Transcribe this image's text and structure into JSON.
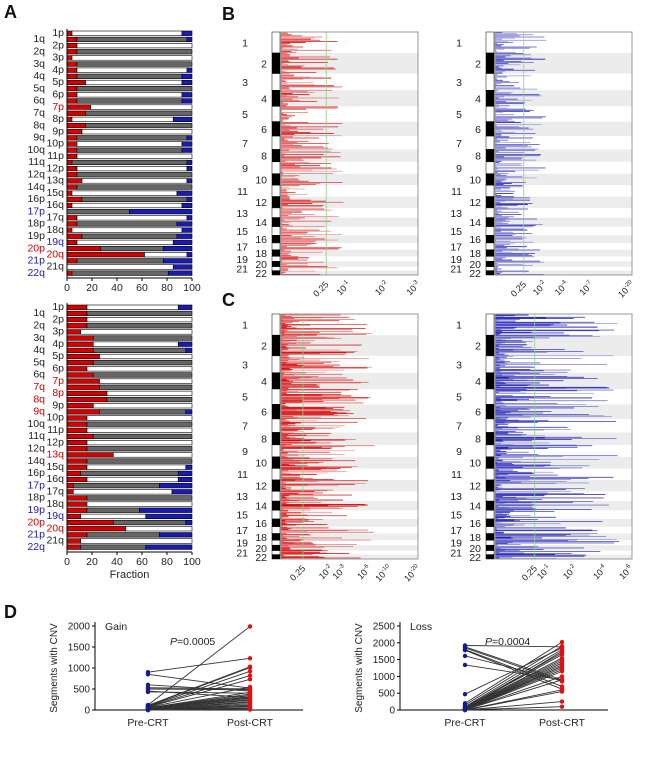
{
  "panels": {
    "A": "A",
    "B": "B",
    "C": "C",
    "D": "D"
  },
  "colors": {
    "gain": "#d40000",
    "loss": "#1a1ab4",
    "neutral_dark": "#666666",
    "neutral_light": "#ffffff",
    "threshold_line": "#8fcf8f"
  },
  "chart_data": [
    {
      "id": "A-top",
      "type": "bar",
      "orientation": "horizontal-stacked",
      "xlim": [
        0,
        100
      ],
      "xticks": [
        "0",
        "20",
        "40",
        "60",
        "80",
        "100"
      ],
      "xlabel": "",
      "categories": [
        "1p",
        "1q",
        "2p",
        "2q",
        "3p",
        "3q",
        "4p",
        "4q",
        "5p",
        "5q",
        "6p",
        "6q",
        "7p",
        "7q",
        "8p",
        "8q",
        "9p",
        "9q",
        "10p",
        "10q",
        "11p",
        "11q",
        "12p",
        "12q",
        "13q",
        "14q",
        "15q",
        "16p",
        "16q",
        "17p",
        "17q",
        "18p",
        "18q",
        "19p",
        "19q",
        "20p",
        "20q",
        "21p",
        "21q",
        "22q"
      ],
      "category_colors": {
        "7p": "gain",
        "17p": "loss",
        "19q": "loss",
        "20p": "gain",
        "20q": "gain",
        "21p": "loss",
        "22q": "loss"
      },
      "gain": [
        4,
        8,
        8,
        8,
        4,
        8,
        8,
        8,
        15,
        8,
        8,
        8,
        19,
        15,
        4,
        15,
        12,
        8,
        8,
        8,
        8,
        4,
        8,
        8,
        12,
        8,
        4,
        12,
        4,
        0,
        8,
        8,
        4,
        12,
        8,
        27,
        62,
        8,
        0,
        4
      ],
      "loss": [
        8,
        4,
        0,
        0,
        0,
        0,
        4,
        8,
        8,
        0,
        8,
        8,
        0,
        0,
        15,
        0,
        0,
        4,
        8,
        8,
        0,
        4,
        4,
        0,
        4,
        0,
        12,
        4,
        8,
        50,
        4,
        12,
        8,
        12,
        15,
        23,
        4,
        23,
        15,
        19
      ]
    },
    {
      "id": "A-bottom",
      "type": "bar",
      "orientation": "horizontal-stacked",
      "xlim": [
        0,
        100
      ],
      "xticks": [
        "0",
        "20",
        "40",
        "60",
        "80",
        "100"
      ],
      "xlabel": "Fraction",
      "categories": [
        "1p",
        "1q",
        "2p",
        "2q",
        "3p",
        "3q",
        "4p",
        "4q",
        "5p",
        "5q",
        "6p",
        "6q",
        "7p",
        "7q",
        "8p",
        "8q",
        "9p",
        "9q",
        "10p",
        "10q",
        "11p",
        "11q",
        "12p",
        "12q",
        "13q",
        "14q",
        "15q",
        "16p",
        "16q",
        "17p",
        "17q",
        "18p",
        "18q",
        "19p",
        "19q",
        "20p",
        "20q",
        "21p",
        "21q",
        "22q"
      ],
      "category_colors": {
        "7p": "gain",
        "7q": "gain",
        "8p": "gain",
        "8q": "gain",
        "9q": "gain",
        "13q": "gain",
        "17p": "loss",
        "19p": "loss",
        "19q": "loss",
        "20p": "gain",
        "20q": "gain",
        "21p": "loss",
        "22q": "loss"
      },
      "gain": [
        16,
        16,
        16,
        16,
        11,
        21,
        21,
        21,
        26,
        21,
        16,
        21,
        26,
        26,
        32,
        32,
        21,
        26,
        16,
        16,
        16,
        21,
        16,
        16,
        37,
        16,
        16,
        11,
        16,
        5,
        5,
        16,
        16,
        16,
        11,
        37,
        47,
        16,
        11,
        11
      ],
      "loss": [
        11,
        0,
        0,
        0,
        0,
        0,
        11,
        5,
        0,
        0,
        0,
        0,
        0,
        0,
        0,
        0,
        0,
        5,
        0,
        0,
        0,
        0,
        0,
        0,
        0,
        0,
        5,
        11,
        11,
        26,
        16,
        0,
        0,
        42,
        37,
        5,
        0,
        26,
        0,
        37
      ]
    },
    {
      "id": "B-gain",
      "type": "genome-plot",
      "series_color": "gain",
      "chromosomes": [
        "1",
        "2",
        "3",
        "4",
        "5",
        "6",
        "7",
        "8",
        "9",
        "10",
        "11",
        "12",
        "13",
        "14",
        "15",
        "16",
        "17",
        "18",
        "19",
        "20",
        "21",
        "22"
      ],
      "xticks": [
        "0.25",
        "10-1",
        "10-2",
        "10-3"
      ],
      "threshold": "0.25"
    },
    {
      "id": "B-loss",
      "type": "genome-plot",
      "series_color": "loss",
      "chromosomes": [
        "1",
        "2",
        "3",
        "4",
        "5",
        "6",
        "7",
        "8",
        "9",
        "10",
        "11",
        "12",
        "13",
        "14",
        "15",
        "16",
        "17",
        "18",
        "19",
        "20",
        "21",
        "22"
      ],
      "xticks": [
        "0.25",
        "10-2",
        "10-4",
        "10-7",
        "10-20"
      ],
      "threshold": "0.25"
    },
    {
      "id": "C-gain",
      "type": "genome-plot",
      "series_color": "gain",
      "chromosomes": [
        "1",
        "2",
        "3",
        "4",
        "5",
        "6",
        "7",
        "8",
        "9",
        "10",
        "11",
        "12",
        "13",
        "14",
        "15",
        "16",
        "17",
        "18",
        "19",
        "20",
        "21",
        "22"
      ],
      "xticks": [
        "0.25",
        "10-2",
        "10-3",
        "10-6",
        "10-10",
        "10-20"
      ],
      "threshold": "0.25"
    },
    {
      "id": "C-loss",
      "type": "genome-plot",
      "series_color": "loss",
      "chromosomes": [
        "1",
        "2",
        "3",
        "4",
        "5",
        "6",
        "7",
        "8",
        "9",
        "10",
        "11",
        "12",
        "13",
        "14",
        "15",
        "16",
        "17",
        "18",
        "19",
        "20",
        "21",
        "22"
      ],
      "xticks": [
        "0.25",
        "10-1",
        "10-2",
        "10-4",
        "10-6"
      ],
      "threshold": "0.25"
    },
    {
      "id": "D-gain",
      "type": "line",
      "title": "Gain",
      "annotation": "=0.0005",
      "annotation_italic": "P",
      "categories": [
        "Pre-CRT",
        "Post-CRT"
      ],
      "ylabel": "Segments with CNV",
      "ylim": [
        0,
        2000
      ],
      "yticks": [
        "0",
        "500",
        "1000",
        "1500",
        "2000"
      ],
      "pairs": [
        [
          900,
          1230
        ],
        [
          850,
          520
        ],
        [
          600,
          450
        ],
        [
          530,
          500
        ],
        [
          500,
          480
        ],
        [
          450,
          300
        ],
        [
          430,
          400
        ],
        [
          120,
          1990
        ],
        [
          110,
          1030
        ],
        [
          100,
          1010
        ],
        [
          90,
          920
        ],
        [
          80,
          820
        ],
        [
          70,
          730
        ],
        [
          60,
          550
        ],
        [
          50,
          420
        ],
        [
          50,
          380
        ],
        [
          40,
          350
        ],
        [
          40,
          320
        ],
        [
          30,
          300
        ],
        [
          30,
          280
        ],
        [
          20,
          250
        ],
        [
          20,
          230
        ],
        [
          10,
          200
        ],
        [
          10,
          180
        ],
        [
          5,
          150
        ],
        [
          5,
          120
        ],
        [
          0,
          100
        ],
        [
          0,
          80
        ],
        [
          0,
          50
        ],
        [
          0,
          30
        ],
        [
          0,
          10
        ]
      ]
    },
    {
      "id": "D-loss",
      "type": "line",
      "title": "Loss",
      "annotation": "=0.0004",
      "annotation_italic": "P",
      "categories": [
        "Pre-CRT",
        "Post-CRT"
      ],
      "ylabel": "Segments with CNV",
      "ylim": [
        0,
        2500
      ],
      "yticks": [
        "0",
        "500",
        "1000",
        "1500",
        "2000",
        "2500"
      ],
      "pairs": [
        [
          1920,
          1880
        ],
        [
          1880,
          900
        ],
        [
          1850,
          850
        ],
        [
          1800,
          700
        ],
        [
          1780,
          620
        ],
        [
          1610,
          880
        ],
        [
          1340,
          900
        ],
        [
          470,
          1850
        ],
        [
          200,
          2020
        ],
        [
          150,
          1900
        ],
        [
          100,
          1800
        ],
        [
          80,
          1700
        ],
        [
          60,
          1650
        ],
        [
          50,
          1550
        ],
        [
          40,
          1500
        ],
        [
          30,
          1450
        ],
        [
          30,
          1400
        ],
        [
          20,
          1350
        ],
        [
          20,
          1300
        ],
        [
          10,
          1250
        ],
        [
          10,
          1200
        ],
        [
          5,
          1000
        ],
        [
          5,
          900
        ],
        [
          0,
          600
        ],
        [
          0,
          550
        ],
        [
          0,
          250
        ],
        [
          0,
          100
        ],
        [
          0,
          1150
        ],
        [
          0,
          1300
        ],
        [
          0,
          1750
        ]
      ]
    }
  ]
}
